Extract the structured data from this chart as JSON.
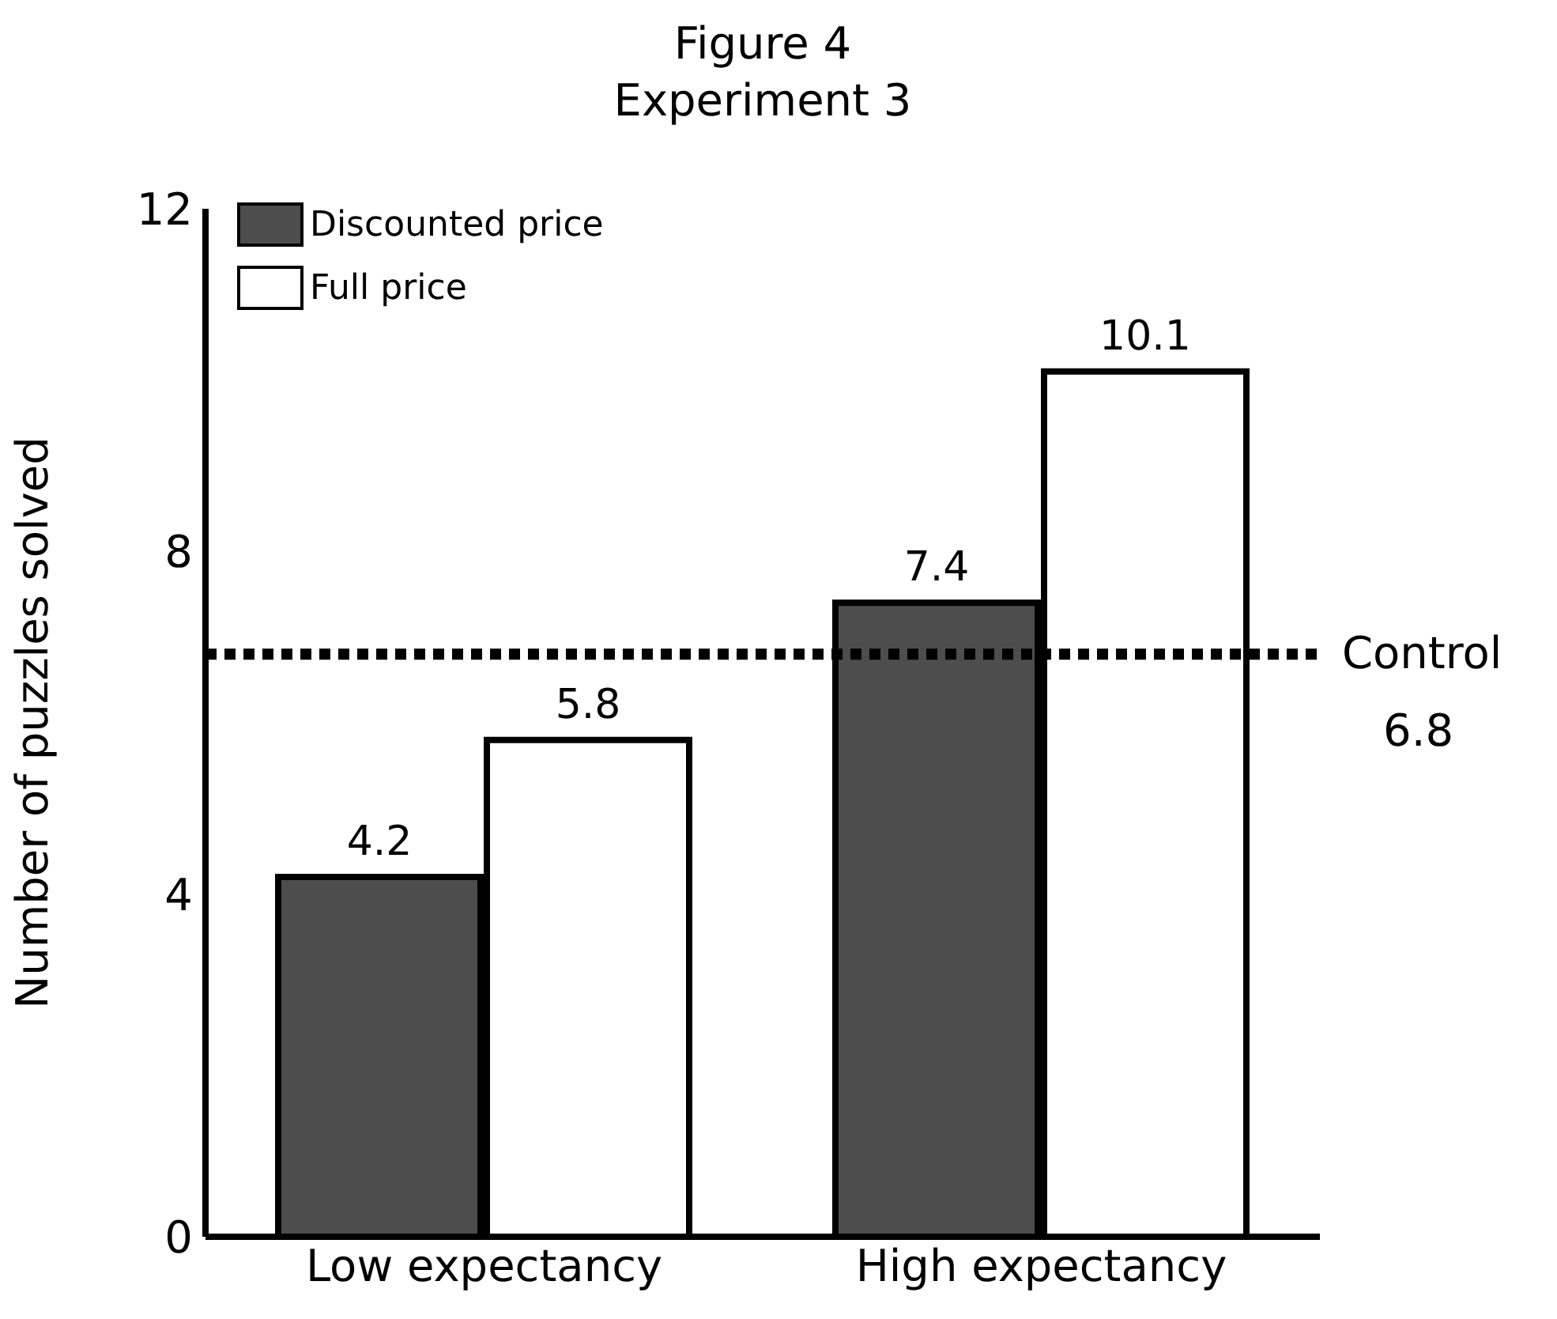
{
  "chart_data": {
    "type": "bar",
    "title": "Figure 4\nExperiment 3",
    "ylabel": "Number of puzzles solved",
    "categories": [
      "Low expectancy",
      "High expectancy"
    ],
    "series": [
      {
        "name": "Discounted price",
        "color": "#4d4d4d",
        "values": [
          4.2,
          7.4
        ]
      },
      {
        "name": "Full price",
        "color": "#ffffff",
        "values": [
          5.8,
          10.1
        ]
      }
    ],
    "ylim": [
      0,
      12
    ],
    "yticks": [
      0,
      4,
      8,
      12
    ],
    "grid": false,
    "legend": "top left",
    "data_labels": true,
    "ref_lines": [
      {
        "axis": "y",
        "value": 6.8,
        "label": "Control\n6.8",
        "line_style": "dotted",
        "color": "#000000"
      }
    ]
  }
}
